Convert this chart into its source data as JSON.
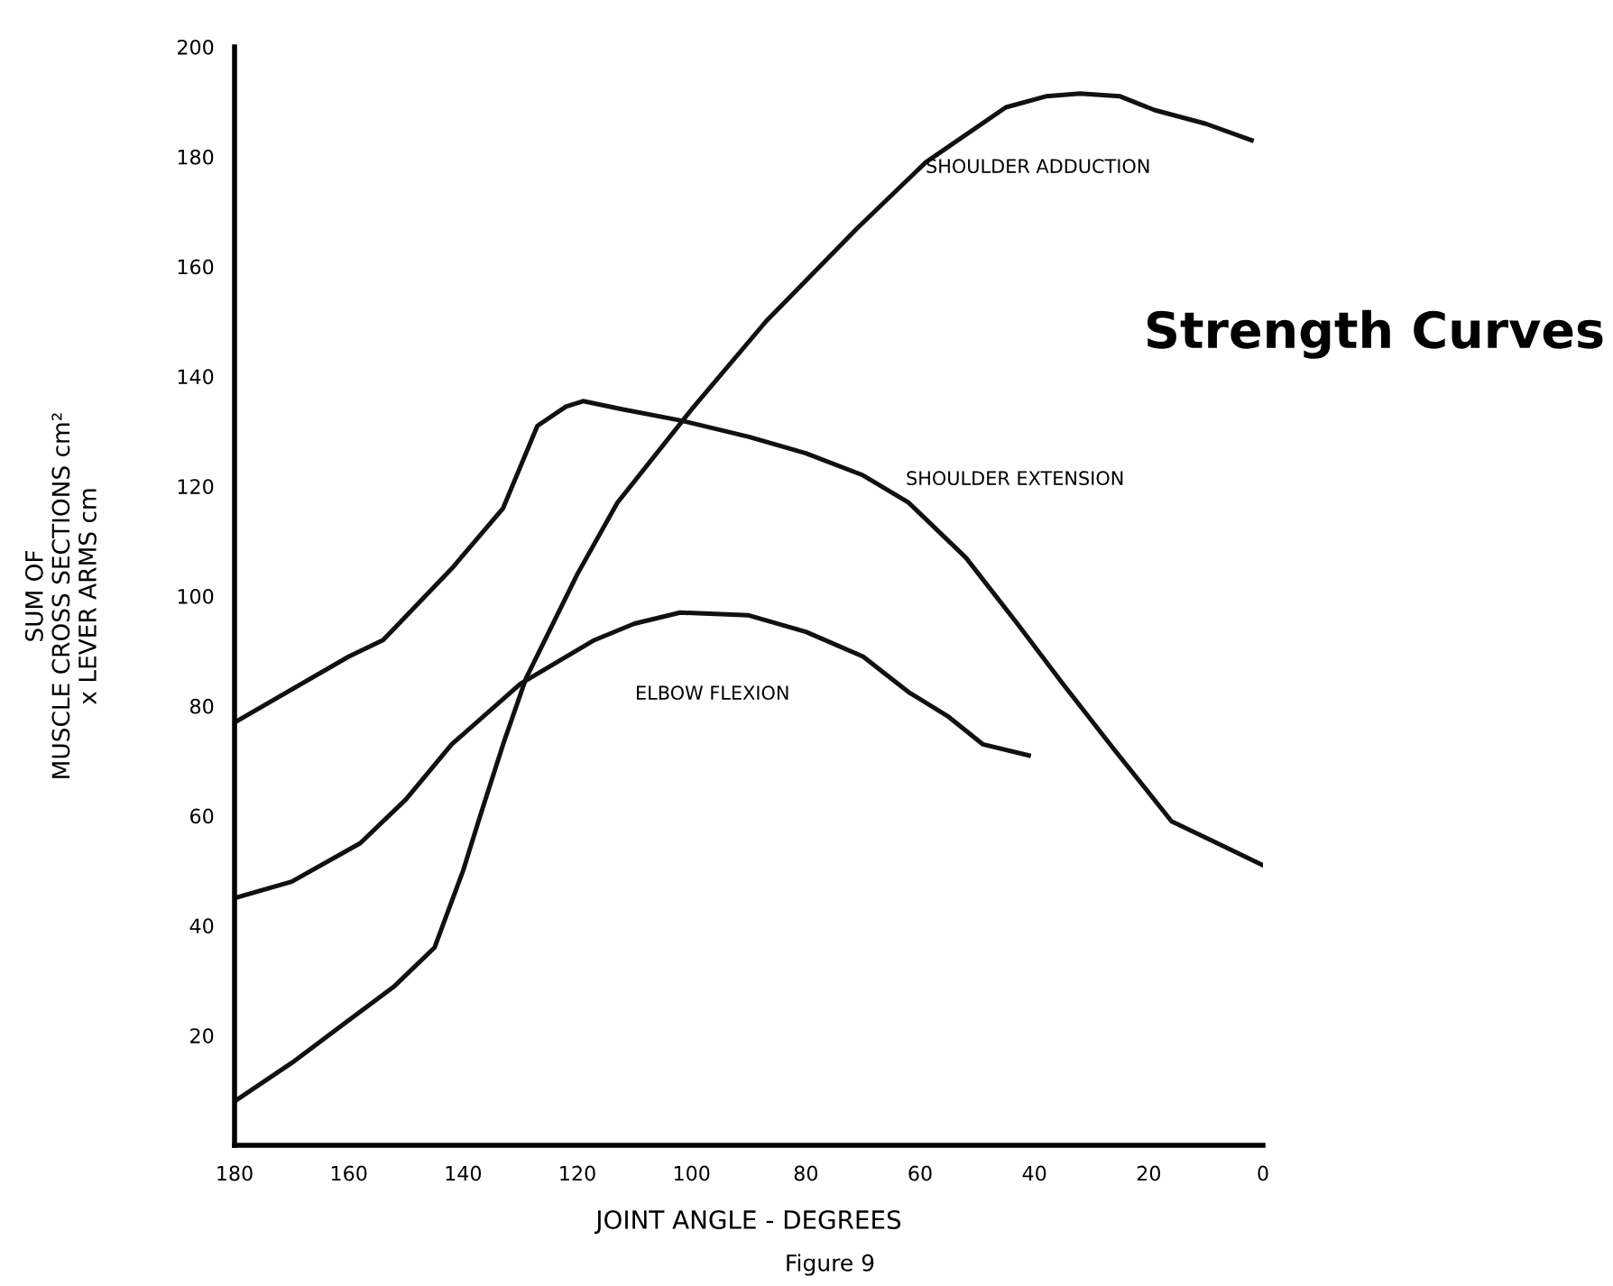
{
  "chart_data": {
    "type": "line",
    "title": "Strength Curves",
    "xlabel": "JOINT ANGLE - DEGREES",
    "ylabel": "SUM OF\nMUSCLE CROSS SECTIONS cm²\nx LEVER ARMS cm",
    "xlim": [
      180,
      0
    ],
    "xticks": [
      180,
      160,
      140,
      120,
      100,
      80,
      60,
      40,
      20,
      0
    ],
    "ylim": [
      0,
      200
    ],
    "yticks": [
      20,
      40,
      60,
      80,
      100,
      120,
      140,
      160,
      180,
      200
    ],
    "grid": false,
    "legend": false,
    "marker": "none",
    "line_style": "solid",
    "series": [
      {
        "color": "#111111",
        "x": [
          180,
          160,
          154,
          142,
          133,
          127,
          122,
          119,
          112,
          102,
          90,
          80,
          70,
          62,
          52,
          43,
          35,
          26,
          16,
          8,
          0
        ],
        "values": [
          77,
          89,
          92,
          105,
          116,
          131,
          134.5,
          135.5,
          134,
          132,
          129,
          126,
          122,
          117,
          107,
          95,
          84,
          72,
          59,
          55,
          51
        ]
      },
      {
        "color": "#111111",
        "x": [
          180,
          170,
          161,
          152,
          145,
          140,
          137,
          133,
          129,
          120,
          113,
          100,
          87,
          71,
          59,
          45,
          38,
          32,
          25,
          19,
          10,
          2
        ],
        "values": [
          8,
          15,
          22,
          29,
          36,
          50,
          60,
          73,
          85,
          104,
          117,
          134,
          150,
          167,
          179,
          189,
          191,
          191.5,
          191,
          188.5,
          186,
          183
        ]
      },
      {
        "color": "#111111",
        "x": [
          180,
          170,
          158,
          150,
          142,
          130,
          117,
          110,
          102,
          90,
          80,
          70,
          62,
          55,
          49,
          41
        ],
        "values": [
          45,
          48,
          55,
          63,
          73,
          84,
          92,
          95,
          97,
          96.5,
          93.5,
          89,
          82.5,
          78,
          73,
          71
        ]
      }
    ],
    "annotations": [
      "SHOULDER ADDUCTION",
      "SHOULDER EXTENSION",
      "ELBOW FLEXION",
      "Figure 9"
    ]
  }
}
